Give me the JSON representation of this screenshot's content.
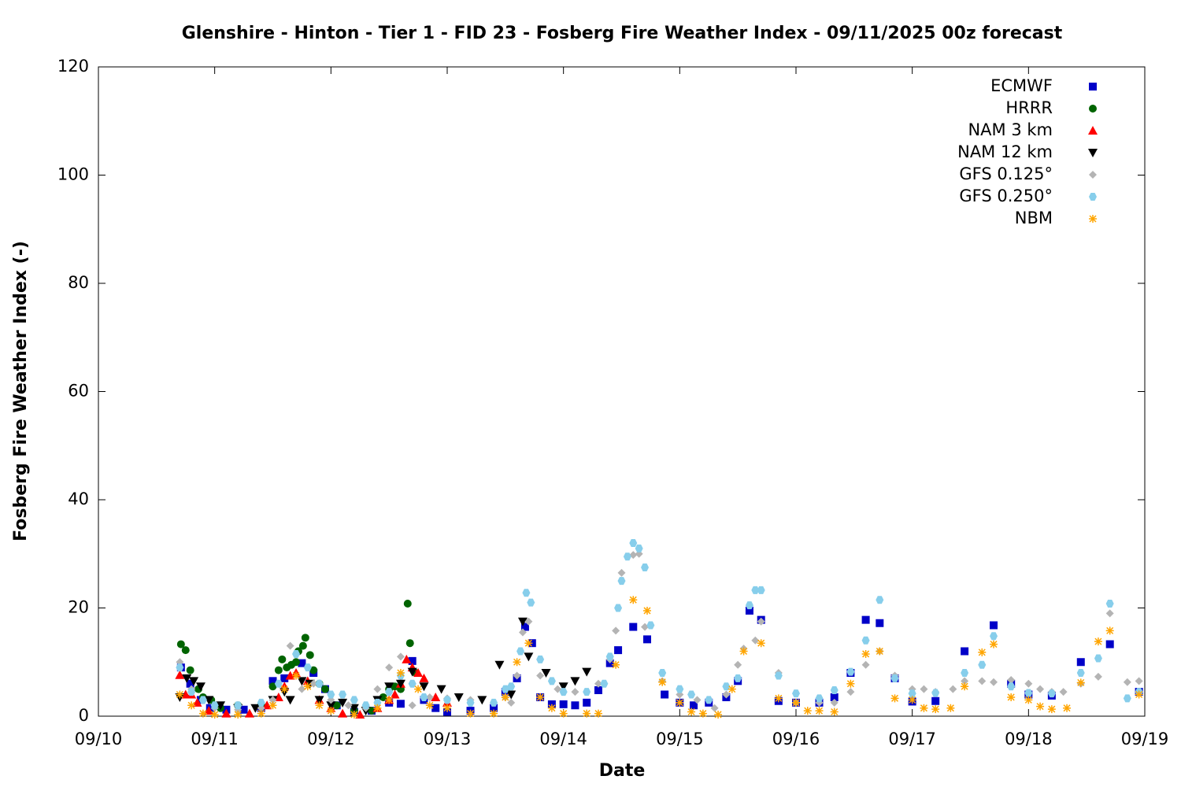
{
  "chart_data": {
    "type": "scatter",
    "title": "Glenshire - Hinton - Tier 1 - FID 23 - Fosberg Fire Weather Index - 09/11/2025 00z forecast",
    "x_label": "Date",
    "y_label": "Fosberg Fire Weather Index (-)",
    "xlim": [
      0,
      9
    ],
    "xticks": [
      {
        "value": 0,
        "label": "09/10"
      },
      {
        "value": 1,
        "label": "09/11"
      },
      {
        "value": 2,
        "label": "09/12"
      },
      {
        "value": 3,
        "label": "09/13"
      },
      {
        "value": 4,
        "label": "09/14"
      },
      {
        "value": 5,
        "label": "09/15"
      },
      {
        "value": 6,
        "label": "09/16"
      },
      {
        "value": 7,
        "label": "09/17"
      },
      {
        "value": 8,
        "label": "09/18"
      },
      {
        "value": 9,
        "label": "09/19"
      }
    ],
    "ylim": [
      0,
      120
    ],
    "yticks": [
      0,
      20,
      40,
      60,
      80,
      100,
      120
    ],
    "legend": "top-right",
    "series": [
      {
        "name": "ECMWF",
        "color": "#0000c8",
        "marker": "square",
        "x": [
          0.71,
          0.79,
          0.88,
          0.96,
          1.1,
          1.25,
          1.4,
          1.5,
          1.6,
          1.75,
          1.85,
          1.95,
          2.05,
          2.2,
          2.35,
          2.5,
          2.6,
          2.7,
          2.8,
          2.9,
          3.0,
          3.2,
          3.4,
          3.5,
          3.6,
          3.67,
          3.73,
          3.8,
          3.9,
          4.0,
          4.1,
          4.2,
          4.3,
          4.4,
          4.47,
          4.6,
          4.72,
          4.87,
          5.0,
          5.12,
          5.25,
          5.4,
          5.5,
          5.6,
          5.7,
          5.85,
          6.0,
          6.2,
          6.33,
          6.47,
          6.6,
          6.72,
          6.85,
          7.0,
          7.2,
          7.45,
          7.7,
          7.85,
          8.0,
          8.2,
          8.45,
          8.7,
          8.95
        ],
        "values": [
          9,
          6,
          3,
          1.5,
          1.2,
          1.2,
          1.5,
          6.5,
          7,
          9.8,
          8,
          5,
          2,
          0.8,
          1,
          2.5,
          2.3,
          10.2,
          3,
          1.5,
          0.8,
          1,
          1.5,
          4.5,
          7,
          16.5,
          13.5,
          3.5,
          2.2,
          2.2,
          2,
          2.5,
          4.8,
          9.8,
          12.2,
          16.5,
          14.2,
          4,
          2.5,
          2,
          2.5,
          3.5,
          6.5,
          19.5,
          17.8,
          2.8,
          2.5,
          2.5,
          3.5,
          8,
          17.8,
          17.2,
          7,
          2.7,
          2.8,
          12,
          16.8,
          6,
          4,
          3.8,
          10,
          13.3,
          4.5
        ]
      },
      {
        "name": "HRRR",
        "color": "#006400",
        "marker": "circle",
        "x": [
          0.71,
          0.75,
          0.79,
          0.86,
          0.9,
          0.97,
          1.05,
          1.2,
          1.4,
          1.5,
          1.55,
          1.58,
          1.62,
          1.66,
          1.7,
          1.72,
          1.76,
          1.78,
          1.82,
          1.85,
          1.9,
          1.95,
          2.05,
          2.2,
          2.35,
          2.45,
          2.5,
          2.55,
          2.6,
          2.66,
          2.68,
          2.73
        ],
        "values": [
          13.3,
          12.2,
          8.5,
          5,
          3.5,
          3,
          1.5,
          2,
          2,
          5.5,
          8.5,
          10.5,
          9,
          9.5,
          10,
          12,
          13,
          14.5,
          11.3,
          8.5,
          6,
          5,
          2,
          1,
          1,
          3.5,
          5,
          5.5,
          5,
          20.8,
          13.5,
          8
        ]
      },
      {
        "name": "NAM 3 km",
        "color": "#ff0000",
        "marker": "triangle",
        "x": [
          0.7,
          0.75,
          0.8,
          0.85,
          0.95,
          1.1,
          1.3,
          1.45,
          1.55,
          1.6,
          1.65,
          1.7,
          1.8,
          1.9,
          2.0,
          2.1,
          2.25,
          2.4,
          2.5,
          2.55,
          2.6,
          2.65,
          2.7,
          2.75,
          2.8,
          2.9,
          3.0
        ],
        "values": [
          7.6,
          4,
          4,
          2.5,
          1,
          0.5,
          0.5,
          2,
          3.5,
          5.5,
          7.5,
          8,
          6.5,
          3,
          1.5,
          0.5,
          0.3,
          1.5,
          3,
          4,
          6,
          10.5,
          9,
          8,
          7,
          3.5,
          2.5
        ]
      },
      {
        "name": "NAM 12 km",
        "color": "#000000",
        "marker": "down-triangle",
        "x": [
          0.7,
          0.76,
          0.82,
          0.88,
          0.95,
          1.05,
          1.2,
          1.35,
          1.5,
          1.6,
          1.65,
          1.75,
          1.82,
          1.9,
          2.0,
          2.1,
          2.2,
          2.3,
          2.4,
          2.5,
          2.6,
          2.7,
          2.8,
          2.95,
          3.1,
          3.3,
          3.45,
          3.55,
          3.65,
          3.7,
          3.85,
          4.0,
          4.1,
          4.2
        ],
        "values": [
          3.5,
          7,
          6.5,
          5.5,
          3,
          2,
          1.5,
          1.5,
          3,
          4.5,
          3,
          6.5,
          6,
          3,
          2,
          2.5,
          1.5,
          1,
          3,
          5.5,
          6,
          8.2,
          5.5,
          5,
          3.5,
          3,
          9.5,
          4,
          17.5,
          11,
          8,
          5.5,
          6.5,
          8.2
        ]
      },
      {
        "name": "GFS 0.125°",
        "color": "#b4b4b4",
        "marker": "diamond",
        "x": [
          0.7,
          0.8,
          0.9,
          1.0,
          1.2,
          1.4,
          1.5,
          1.65,
          1.75,
          1.85,
          2.0,
          2.15,
          2.3,
          2.4,
          2.5,
          2.6,
          2.7,
          2.85,
          3.0,
          3.2,
          3.4,
          3.5,
          3.55,
          3.6,
          3.65,
          3.7,
          3.8,
          3.95,
          4.1,
          4.3,
          4.4,
          4.45,
          4.5,
          4.6,
          4.65,
          4.7,
          4.85,
          5.0,
          5.15,
          5.3,
          5.4,
          5.5,
          5.55,
          5.65,
          5.7,
          5.85,
          6.0,
          6.2,
          6.33,
          6.47,
          6.6,
          6.72,
          6.85,
          7.0,
          7.1,
          7.2,
          7.35,
          7.45,
          7.6,
          7.7,
          7.85,
          8.0,
          8.1,
          8.2,
          8.3,
          8.45,
          8.6,
          8.7,
          8.85,
          8.95
        ],
        "values": [
          10,
          5,
          3,
          1.5,
          1.2,
          1.5,
          3,
          13,
          5,
          6,
          3,
          2,
          1.5,
          5,
          9,
          11,
          2,
          3.5,
          3.3,
          3,
          2.5,
          3.5,
          2.5,
          7.5,
          15.5,
          17.5,
          7.5,
          5,
          4.5,
          6,
          10.5,
          15.8,
          26.5,
          29.8,
          30,
          16.5,
          6.5,
          4,
          3,
          1.5,
          4,
          9.5,
          12.5,
          14,
          17.5,
          8,
          2.5,
          2.5,
          2.5,
          4.5,
          9.5,
          12,
          7.5,
          5,
          5,
          4.5,
          5,
          6.5,
          6.5,
          6.3,
          6.7,
          6,
          5,
          4.5,
          4.5,
          6,
          7.3,
          19,
          6.3,
          6.5
        ]
      },
      {
        "name": "GFS 0.250°",
        "color": "#87ceeb",
        "marker": "hexagon",
        "x": [
          0.7,
          0.8,
          0.9,
          1.0,
          1.2,
          1.4,
          1.55,
          1.7,
          1.8,
          1.9,
          2.0,
          2.1,
          2.2,
          2.3,
          2.4,
          2.5,
          2.6,
          2.7,
          2.8,
          3.0,
          3.2,
          3.4,
          3.5,
          3.55,
          3.63,
          3.68,
          3.72,
          3.8,
          3.9,
          4.0,
          4.2,
          4.35,
          4.4,
          4.47,
          4.5,
          4.55,
          4.6,
          4.65,
          4.7,
          4.75,
          4.85,
          5.0,
          5.1,
          5.25,
          5.4,
          5.5,
          5.6,
          5.65,
          5.7,
          5.85,
          6.0,
          6.2,
          6.33,
          6.47,
          6.6,
          6.72,
          6.85,
          7.0,
          7.2,
          7.45,
          7.6,
          7.7,
          7.85,
          8.0,
          8.2,
          8.45,
          8.6,
          8.7,
          8.85,
          8.95
        ],
        "values": [
          9,
          4.5,
          3,
          2,
          2,
          2.5,
          6,
          11.5,
          9,
          6,
          4,
          4,
          3,
          2,
          2.5,
          4.5,
          7.5,
          6,
          3.5,
          3,
          2.5,
          2.5,
          5,
          5.5,
          12,
          22.8,
          21,
          10.5,
          6.5,
          4.5,
          4.5,
          6,
          11,
          20,
          25,
          29.5,
          32,
          31,
          27.5,
          16.8,
          8,
          5,
          4,
          3,
          5.5,
          7,
          20.5,
          23.3,
          23.3,
          7.5,
          4.2,
          3.3,
          4.8,
          8.2,
          14,
          21.5,
          7,
          4.2,
          4.3,
          8,
          9.5,
          14.8,
          5.5,
          4.3,
          4.2,
          8,
          10.7,
          20.8,
          3.3,
          4.5
        ]
      },
      {
        "name": "NBM",
        "color": "#ffa500",
        "marker": "star",
        "x": [
          0.7,
          0.8,
          0.9,
          1.0,
          1.2,
          1.4,
          1.5,
          1.6,
          1.7,
          1.8,
          1.9,
          2.0,
          2.2,
          2.4,
          2.5,
          2.6,
          2.75,
          2.85,
          3.0,
          3.2,
          3.4,
          3.5,
          3.6,
          3.7,
          3.8,
          3.9,
          4.0,
          4.2,
          4.3,
          4.45,
          4.6,
          4.72,
          4.85,
          5.0,
          5.1,
          5.2,
          5.33,
          5.45,
          5.55,
          5.7,
          5.85,
          6.0,
          6.1,
          6.2,
          6.33,
          6.47,
          6.6,
          6.72,
          6.85,
          7.0,
          7.1,
          7.2,
          7.33,
          7.45,
          7.6,
          7.7,
          7.85,
          8.0,
          8.1,
          8.2,
          8.33,
          8.45,
          8.6,
          8.7,
          8.95
        ],
        "values": [
          4,
          2,
          0.5,
          0.3,
          0.3,
          0.5,
          2,
          5,
          7.5,
          5.5,
          2,
          1,
          0.3,
          1.5,
          3,
          8,
          5,
          2,
          1.5,
          0.5,
          0.5,
          3.5,
          10,
          13.5,
          3.5,
          1.5,
          0.5,
          0.5,
          0.5,
          9.5,
          21.5,
          19.5,
          6.3,
          2.5,
          0.8,
          0.5,
          0.3,
          5,
          12,
          13.5,
          3.3,
          2.5,
          1,
          1,
          0.8,
          6,
          11.5,
          12,
          3.3,
          3,
          1.5,
          1.3,
          1.5,
          5.5,
          11.8,
          13.3,
          3.5,
          3,
          1.8,
          1.3,
          1.5,
          6.2,
          13.8,
          15.8,
          4
        ]
      }
    ]
  }
}
